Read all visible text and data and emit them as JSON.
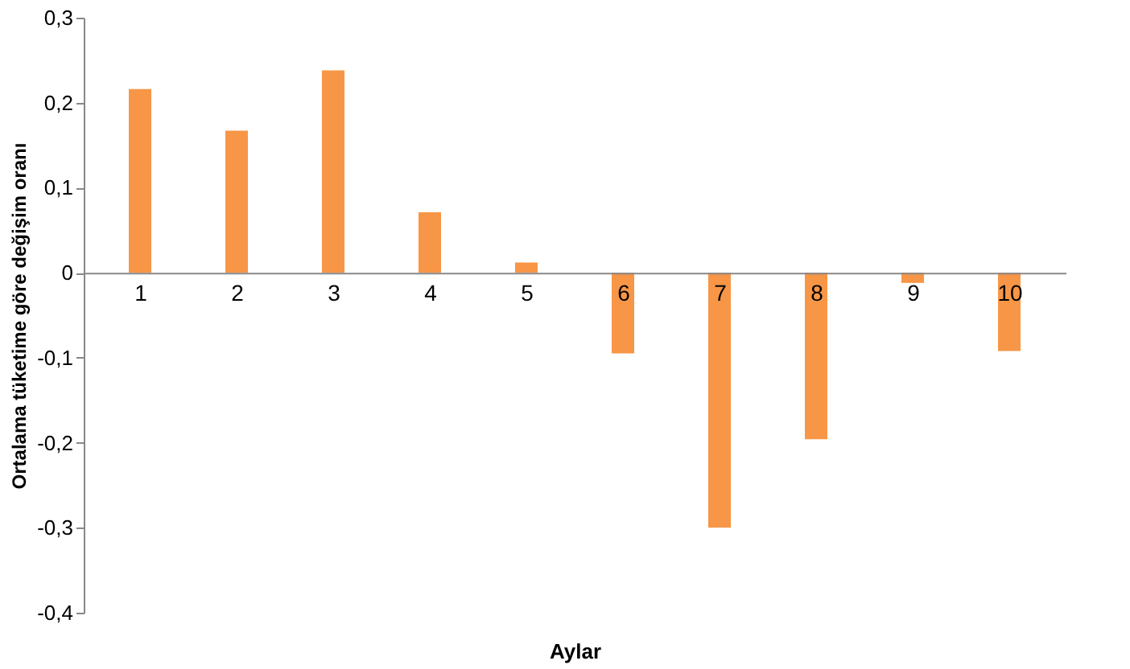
{
  "chart_data": {
    "type": "bar",
    "xlabel": "Aylar",
    "ylabel": "Ortalama tüketime göre değişim oranı",
    "categories": [
      "1",
      "2",
      "3",
      "4",
      "5",
      "6",
      "7",
      "8",
      "9",
      "10"
    ],
    "values": [
      0.216,
      0.167,
      0.238,
      0.071,
      0.012,
      -0.095,
      -0.3,
      -0.196,
      -0.012,
      -0.092
    ],
    "color": "#f79646",
    "ylim": [
      -0.4,
      0.3
    ],
    "yticks": [
      {
        "value": -0.4,
        "label": "-0,4"
      },
      {
        "value": -0.3,
        "label": "-0,3"
      },
      {
        "value": -0.2,
        "label": "-0,2"
      },
      {
        "value": -0.1,
        "label": "-0,1"
      },
      {
        "value": 0,
        "label": "0"
      },
      {
        "value": 0.1,
        "label": "0,1"
      },
      {
        "value": 0.2,
        "label": "0,2"
      },
      {
        "value": 0.3,
        "label": "0,3"
      }
    ],
    "grid": false
  }
}
